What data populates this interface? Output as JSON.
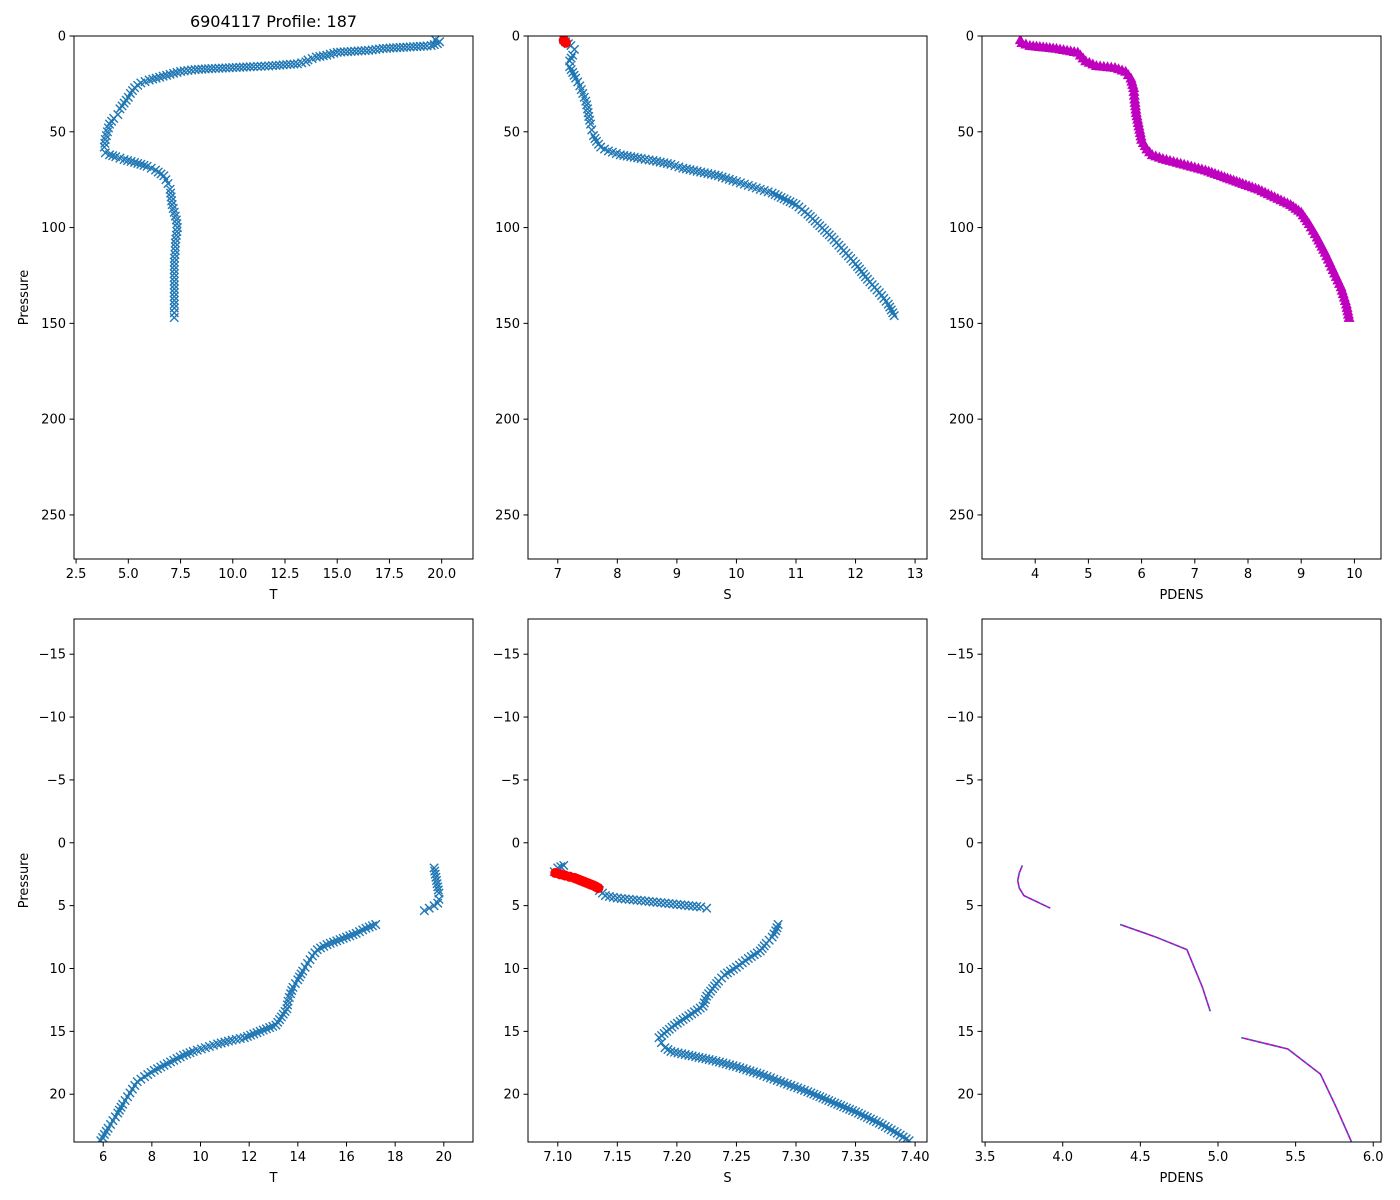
{
  "figure_title": "6904117 Profile: 187",
  "colors": {
    "blue": "#1f77b4",
    "red": "#ff0000",
    "magenta": "#bf00bf",
    "axis": "#000000",
    "background": "#ffffff"
  },
  "chart_data": [
    {
      "id": "temp_full",
      "type": "scatter",
      "title": "6904117 Profile: 187",
      "xlabel": "T",
      "ylabel": "Pressure",
      "xlim": [
        2.4,
        21.5
      ],
      "ylim": [
        0,
        273
      ],
      "y_inverted": true,
      "xticks": [
        2.5,
        5.0,
        7.5,
        10.0,
        12.5,
        15.0,
        17.5,
        20.0
      ],
      "xtick_labels": [
        "2.5",
        "5.0",
        "7.5",
        "10.0",
        "12.5",
        "15.0",
        "17.5",
        "20.0"
      ],
      "yticks": [
        0,
        50,
        100,
        150,
        200,
        250
      ],
      "ytick_labels": [
        "0",
        "50",
        "100",
        "150",
        "200",
        "250"
      ],
      "series": [
        {
          "name": "T",
          "marker": "x",
          "color": "#1f77b4",
          "x": [
            19.7,
            19.9,
            19.8,
            19.5,
            19.3,
            17.2,
            16.5,
            15.0,
            14.5,
            14.0,
            13.6,
            13.5,
            13.1,
            11.9,
            11.0,
            10.0,
            9.0,
            8.2,
            7.5,
            7.0,
            6.5,
            6.0,
            5.6,
            5.3,
            5.1,
            5.0,
            4.8,
            4.6,
            4.5,
            4.3,
            4.1,
            4.0,
            3.9,
            3.85,
            3.9,
            4.1,
            4.4,
            4.8,
            5.3,
            5.9,
            6.3,
            6.7,
            6.9,
            7.0,
            7.05,
            7.1,
            7.2,
            7.3,
            7.35,
            7.3,
            7.25,
            7.25,
            7.2,
            7.2,
            7.2,
            7.2,
            7.2,
            7.2
          ],
          "y": [
            2,
            3,
            4,
            5,
            5.2,
            6.5,
            7.5,
            8.5,
            10,
            11,
            12.5,
            13.5,
            14.5,
            15.5,
            16,
            16.5,
            17,
            17.5,
            18.5,
            20,
            21.5,
            23,
            24.5,
            27,
            30,
            32,
            35,
            38,
            41,
            43,
            46,
            50,
            54,
            58,
            61,
            62,
            63,
            64.5,
            66,
            68,
            70,
            73,
            77,
            80,
            84,
            88,
            92,
            96,
            100,
            104,
            108,
            112,
            118,
            124,
            130,
            136,
            142,
            147
          ]
        }
      ]
    },
    {
      "id": "sal_full",
      "type": "scatter",
      "title": "",
      "xlabel": "S",
      "ylabel": "",
      "xlim": [
        6.5,
        13.2
      ],
      "ylim": [
        0,
        273
      ],
      "y_inverted": true,
      "xticks": [
        7,
        8,
        9,
        10,
        11,
        12,
        13
      ],
      "xtick_labels": [
        "7",
        "8",
        "9",
        "10",
        "11",
        "12",
        "13"
      ],
      "yticks": [
        0,
        50,
        100,
        150,
        200,
        250
      ],
      "ytick_labels": [
        "0",
        "50",
        "100",
        "150",
        "200",
        "250"
      ],
      "series": [
        {
          "name": "S",
          "marker": "x",
          "color": "#1f77b4",
          "x": [
            7.1,
            7.13,
            7.18,
            7.22,
            7.28,
            7.25,
            7.2,
            7.2,
            7.25,
            7.3,
            7.37,
            7.42,
            7.47,
            7.5,
            7.52,
            7.55,
            7.57,
            7.6,
            7.65,
            7.72,
            7.85,
            8.05,
            8.4,
            8.6,
            8.9,
            9.1,
            9.4,
            9.7,
            10.0,
            10.2,
            10.4,
            10.6,
            10.8,
            11.0,
            11.2,
            11.4,
            11.6,
            11.8,
            12.0,
            12.2,
            12.4,
            12.55,
            12.65
          ],
          "y": [
            2,
            3,
            4,
            5,
            7,
            10,
            13,
            16,
            19,
            22,
            26,
            30,
            34,
            38,
            42,
            46,
            49,
            52,
            55,
            58,
            60,
            62,
            64,
            65,
            67,
            69,
            71,
            73,
            76,
            78,
            80,
            82,
            85,
            88,
            93,
            99,
            105,
            112,
            119,
            127,
            134,
            140,
            146
          ]
        },
        {
          "name": "S (flagged)",
          "marker": "o",
          "color": "#ff0000",
          "x": [
            7.1,
            7.11,
            7.12,
            7.13,
            7.135
          ],
          "y": [
            2.3,
            2.6,
            2.9,
            3.2,
            3.5
          ]
        }
      ]
    },
    {
      "id": "pdens_full",
      "type": "scatter",
      "title": "",
      "xlabel": "PDENS",
      "ylabel": "",
      "xlim": [
        3.0,
        10.5
      ],
      "ylim": [
        0,
        273
      ],
      "y_inverted": true,
      "xticks": [
        4,
        5,
        6,
        7,
        8,
        9,
        10
      ],
      "xtick_labels": [
        "4",
        "5",
        "6",
        "7",
        "8",
        "9",
        "10"
      ],
      "yticks": [
        0,
        50,
        100,
        150,
        200,
        250
      ],
      "ytick_labels": [
        "0",
        "50",
        "100",
        "150",
        "200",
        "250"
      ],
      "series": [
        {
          "name": "PDENS",
          "marker": "^",
          "color": "#bf00bf",
          "x": [
            3.72,
            3.75,
            3.9,
            4.4,
            4.8,
            4.9,
            4.95,
            5.15,
            5.5,
            5.7,
            5.8,
            5.85,
            5.87,
            5.9,
            5.95,
            6.0,
            6.1,
            6.2,
            6.4,
            6.8,
            7.2,
            7.5,
            7.9,
            8.2,
            8.5,
            8.8,
            9.0,
            9.15,
            9.3,
            9.45,
            9.6,
            9.75,
            9.85,
            9.9
          ],
          "y": [
            2,
            3.5,
            5,
            6.5,
            8.5,
            11.5,
            13,
            15.5,
            16.5,
            18.5,
            22,
            27,
            33,
            40,
            47,
            54,
            59,
            62,
            64,
            67,
            70,
            73,
            77,
            80,
            84,
            88,
            92,
            98,
            105,
            113,
            122,
            131,
            140,
            147
          ]
        }
      ]
    },
    {
      "id": "temp_zoom",
      "type": "scatter",
      "title": "",
      "xlabel": "T",
      "ylabel": "Pressure",
      "xlim": [
        4.8,
        21.2
      ],
      "ylim": [
        -17.8,
        23.8
      ],
      "y_inverted": true,
      "xticks": [
        6,
        8,
        10,
        12,
        14,
        16,
        18,
        20
      ],
      "xtick_labels": [
        "6",
        "8",
        "10",
        "12",
        "14",
        "16",
        "18",
        "20"
      ],
      "yticks": [
        -15,
        -10,
        -5,
        0,
        5,
        10,
        15,
        20
      ],
      "ytick_labels": [
        "−15",
        "−10",
        "−5",
        "0",
        "5",
        "10",
        "15",
        "20"
      ],
      "series": [
        {
          "name": "T",
          "marker": "x",
          "color": "#1f77b4",
          "x": [
            19.6,
            19.65,
            19.7,
            19.75,
            19.8,
            19.8,
            19.75,
            19.6,
            19.4,
            19.2,
            17.2,
            16.8,
            16.4,
            16.0,
            15.6,
            15.2,
            14.8,
            14.6,
            14.4,
            14.2,
            14.0,
            13.8,
            13.7,
            13.6,
            13.55,
            13.1,
            11.8,
            11.3,
            10.7,
            10.2,
            9.7,
            9.3,
            8.9,
            8.5,
            8.1,
            7.7,
            7.4,
            7.2,
            7.0,
            6.8,
            6.6,
            6.4,
            6.2,
            6.05,
            5.9
          ],
          "y": [
            2.0,
            2.5,
            3.0,
            3.5,
            4.0,
            4.5,
            4.8,
            5.0,
            5.2,
            5.4,
            6.5,
            6.8,
            7.2,
            7.5,
            7.8,
            8.1,
            8.5,
            9.0,
            9.6,
            10.2,
            10.9,
            11.5,
            12.0,
            12.6,
            13.2,
            14.5,
            15.5,
            15.7,
            16.0,
            16.3,
            16.6,
            16.9,
            17.3,
            17.7,
            18.1,
            18.6,
            19.0,
            19.6,
            20.2,
            20.8,
            21.5,
            22.1,
            22.7,
            23.2,
            23.7
          ]
        }
      ]
    },
    {
      "id": "sal_zoom",
      "type": "scatter",
      "title": "",
      "xlabel": "S",
      "ylabel": "",
      "xlim": [
        7.075,
        7.41
      ],
      "ylim": [
        -17.8,
        23.8
      ],
      "y_inverted": true,
      "xticks": [
        7.1,
        7.15,
        7.2,
        7.25,
        7.3,
        7.35,
        7.4
      ],
      "xtick_labels": [
        "7.10",
        "7.15",
        "7.20",
        "7.25",
        "7.30",
        "7.35",
        "7.40"
      ],
      "yticks": [
        -15,
        -10,
        -5,
        0,
        5,
        10,
        15,
        20
      ],
      "ytick_labels": [
        "−15",
        "−10",
        "−5",
        "0",
        "5",
        "10",
        "15",
        "20"
      ],
      "series": [
        {
          "name": "S",
          "marker": "x",
          "color": "#1f77b4",
          "x": [
            7.105,
            7.1,
            7.097,
            7.135,
            7.14,
            7.15,
            7.16,
            7.17,
            7.18,
            7.19,
            7.2,
            7.21,
            7.22,
            7.225,
            7.285,
            7.283,
            7.28,
            7.275,
            7.27,
            7.26,
            7.25,
            7.24,
            7.235,
            7.23,
            7.225,
            7.222,
            7.198,
            7.185,
            7.187,
            7.19,
            7.195,
            7.21,
            7.23,
            7.25,
            7.27,
            7.29,
            7.31,
            7.33,
            7.35,
            7.37,
            7.385,
            7.395
          ],
          "y": [
            1.8,
            2.0,
            2.3,
            3.8,
            4.2,
            4.4,
            4.5,
            4.6,
            4.7,
            4.8,
            4.9,
            5.0,
            5.1,
            5.2,
            6.5,
            7.0,
            7.5,
            8.0,
            8.6,
            9.2,
            9.9,
            10.5,
            11.0,
            11.6,
            12.2,
            13.0,
            14.5,
            15.5,
            15.9,
            16.3,
            16.6,
            16.9,
            17.3,
            17.8,
            18.4,
            19.1,
            19.8,
            20.6,
            21.4,
            22.3,
            23.1,
            23.7
          ]
        },
        {
          "name": "S (flagged)",
          "marker": "o",
          "color": "#ff0000",
          "x": [
            7.098,
            7.102,
            7.106,
            7.11,
            7.114,
            7.118,
            7.122,
            7.126,
            7.13,
            7.134
          ],
          "y": [
            2.4,
            2.5,
            2.6,
            2.7,
            2.8,
            2.95,
            3.1,
            3.25,
            3.4,
            3.6
          ]
        }
      ]
    },
    {
      "id": "pdens_zoom",
      "type": "line",
      "title": "",
      "xlabel": "PDENS",
      "ylabel": "",
      "xlim": [
        3.48,
        6.05
      ],
      "ylim": [
        -17.8,
        23.8
      ],
      "y_inverted": true,
      "xticks": [
        3.5,
        4.0,
        4.5,
        5.0,
        5.5,
        6.0
      ],
      "xtick_labels": [
        "3.5",
        "4.0",
        "4.5",
        "5.0",
        "5.5",
        "6.0"
      ],
      "yticks": [
        -15,
        -10,
        -5,
        0,
        5,
        10,
        15,
        20
      ],
      "ytick_labels": [
        "−15",
        "−10",
        "−5",
        "0",
        "5",
        "10",
        "15",
        "20"
      ],
      "series": [
        {
          "name": "PDENS segment 1",
          "marker": "line",
          "color": "#bf00bf",
          "x": [
            3.74,
            3.72,
            3.71,
            3.72,
            3.75,
            3.92
          ],
          "y": [
            1.8,
            2.4,
            3.0,
            3.6,
            4.2,
            5.2
          ]
        },
        {
          "name": "PDENS segment 2",
          "marker": "line",
          "color": "#bf00bf",
          "x": [
            4.37,
            4.6,
            4.8,
            4.9,
            4.95
          ],
          "y": [
            6.5,
            7.5,
            8.5,
            11.5,
            13.4
          ]
        },
        {
          "name": "PDENS segment 3",
          "marker": "line",
          "color": "#bf00bf",
          "x": [
            5.15,
            5.45,
            5.66,
            5.76,
            5.86
          ],
          "y": [
            15.5,
            16.4,
            18.4,
            21.0,
            23.8
          ]
        }
      ]
    }
  ]
}
